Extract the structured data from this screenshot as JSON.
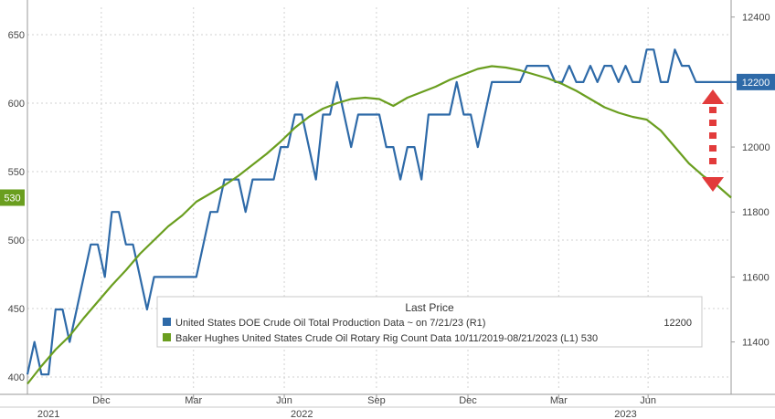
{
  "chart_data": {
    "type": "line",
    "legend": {
      "title": "Last Price",
      "placement": "bottom-center",
      "entries": [
        {
          "label": "United States DOE Crude Oil Total Production Data ~   on 7/21/23   (R1)",
          "value": "12200",
          "color": "#2e6aa8"
        },
        {
          "label": "Baker Hughes United States Crude Oil Rotary Rig Count Data 10/11/2019-08/21/2023   (L1) 530",
          "value": "",
          "color": "#6a9e1f"
        }
      ]
    },
    "left_axis": {
      "min": 390,
      "max": 670,
      "ticks": [
        400,
        450,
        500,
        550,
        600,
        650
      ],
      "last_value_label": "530",
      "label_color": "#6a9e1f"
    },
    "right_axis": {
      "min": 11250,
      "max": 12430,
      "ticks": [
        11400,
        11600,
        11800,
        12000,
        12200,
        12400
      ],
      "last_value_label": "12200",
      "label_color": "#2e6aa8"
    },
    "x_axis": {
      "ticks": [
        {
          "label": "Dec",
          "t": 0.105
        },
        {
          "label": "Mar",
          "t": 0.236
        },
        {
          "label": "Jun",
          "t": 0.365
        },
        {
          "label": "Sep",
          "t": 0.496
        },
        {
          "label": "Dec",
          "t": 0.626
        },
        {
          "label": "Mar",
          "t": 0.755
        },
        {
          "label": "Jun",
          "t": 0.882
        }
      ],
      "years": [
        {
          "label": "2021",
          "t": 0.03
        },
        {
          "label": "2022",
          "t": 0.39
        },
        {
          "label": "2023",
          "t": 0.85
        }
      ]
    },
    "grid": true,
    "series": [
      {
        "name": "United States DOE Crude Oil Total Production Data",
        "axis": "right",
        "color": "#2e6aa8",
        "points": [
          [
            0.0,
            11300
          ],
          [
            0.01,
            11400
          ],
          [
            0.02,
            11300
          ],
          [
            0.03,
            11300
          ],
          [
            0.04,
            11500
          ],
          [
            0.05,
            11500
          ],
          [
            0.06,
            11400
          ],
          [
            0.07,
            11500
          ],
          [
            0.08,
            11600
          ],
          [
            0.09,
            11700
          ],
          [
            0.1,
            11700
          ],
          [
            0.11,
            11600
          ],
          [
            0.12,
            11800
          ],
          [
            0.13,
            11800
          ],
          [
            0.14,
            11700
          ],
          [
            0.15,
            11700
          ],
          [
            0.16,
            11600
          ],
          [
            0.17,
            11500
          ],
          [
            0.18,
            11600
          ],
          [
            0.19,
            11600
          ],
          [
            0.2,
            11600
          ],
          [
            0.21,
            11600
          ],
          [
            0.22,
            11600
          ],
          [
            0.23,
            11600
          ],
          [
            0.24,
            11600
          ],
          [
            0.25,
            11700
          ],
          [
            0.26,
            11800
          ],
          [
            0.27,
            11800
          ],
          [
            0.28,
            11900
          ],
          [
            0.29,
            11900
          ],
          [
            0.3,
            11900
          ],
          [
            0.31,
            11800
          ],
          [
            0.32,
            11900
          ],
          [
            0.33,
            11900
          ],
          [
            0.34,
            11900
          ],
          [
            0.35,
            11900
          ],
          [
            0.36,
            12000
          ],
          [
            0.37,
            12000
          ],
          [
            0.38,
            12100
          ],
          [
            0.39,
            12100
          ],
          [
            0.4,
            12000
          ],
          [
            0.41,
            11900
          ],
          [
            0.42,
            12100
          ],
          [
            0.43,
            12100
          ],
          [
            0.44,
            12200
          ],
          [
            0.45,
            12100
          ],
          [
            0.46,
            12000
          ],
          [
            0.47,
            12100
          ],
          [
            0.48,
            12100
          ],
          [
            0.49,
            12100
          ],
          [
            0.5,
            12100
          ],
          [
            0.51,
            12000
          ],
          [
            0.52,
            12000
          ],
          [
            0.53,
            11900
          ],
          [
            0.54,
            12000
          ],
          [
            0.55,
            12000
          ],
          [
            0.56,
            11900
          ],
          [
            0.57,
            12100
          ],
          [
            0.58,
            12100
          ],
          [
            0.59,
            12100
          ],
          [
            0.6,
            12100
          ],
          [
            0.61,
            12200
          ],
          [
            0.62,
            12100
          ],
          [
            0.63,
            12100
          ],
          [
            0.64,
            12000
          ],
          [
            0.65,
            12100
          ],
          [
            0.66,
            12200
          ],
          [
            0.67,
            12200
          ],
          [
            0.68,
            12200
          ],
          [
            0.69,
            12200
          ],
          [
            0.7,
            12200
          ],
          [
            0.71,
            12250
          ],
          [
            0.72,
            12250
          ],
          [
            0.73,
            12250
          ],
          [
            0.74,
            12250
          ],
          [
            0.75,
            12200
          ],
          [
            0.76,
            12200
          ],
          [
            0.77,
            12250
          ],
          [
            0.78,
            12200
          ],
          [
            0.79,
            12200
          ],
          [
            0.8,
            12250
          ],
          [
            0.81,
            12200
          ],
          [
            0.82,
            12250
          ],
          [
            0.83,
            12250
          ],
          [
            0.84,
            12200
          ],
          [
            0.85,
            12250
          ],
          [
            0.86,
            12200
          ],
          [
            0.87,
            12200
          ],
          [
            0.88,
            12300
          ],
          [
            0.89,
            12300
          ],
          [
            0.9,
            12200
          ],
          [
            0.91,
            12200
          ],
          [
            0.92,
            12300
          ],
          [
            0.93,
            12250
          ],
          [
            0.94,
            12250
          ],
          [
            0.95,
            12200
          ],
          [
            0.96,
            12200
          ],
          [
            0.97,
            12200
          ],
          [
            0.98,
            12200
          ],
          [
            0.99,
            12200
          ],
          [
            1.0,
            12200
          ]
        ]
      },
      {
        "name": "Baker Hughes United States Crude Oil Rotary Rig Count Data",
        "axis": "left",
        "color": "#6a9e1f",
        "points": [
          [
            0.0,
            395
          ],
          [
            0.02,
            408
          ],
          [
            0.04,
            420
          ],
          [
            0.06,
            430
          ],
          [
            0.08,
            443
          ],
          [
            0.1,
            455
          ],
          [
            0.12,
            467
          ],
          [
            0.14,
            478
          ],
          [
            0.16,
            490
          ],
          [
            0.18,
            500
          ],
          [
            0.2,
            510
          ],
          [
            0.22,
            518
          ],
          [
            0.24,
            528
          ],
          [
            0.26,
            534
          ],
          [
            0.28,
            540
          ],
          [
            0.3,
            547
          ],
          [
            0.32,
            555
          ],
          [
            0.34,
            563
          ],
          [
            0.36,
            572
          ],
          [
            0.38,
            582
          ],
          [
            0.4,
            590
          ],
          [
            0.42,
            596
          ],
          [
            0.44,
            600
          ],
          [
            0.46,
            603
          ],
          [
            0.48,
            604
          ],
          [
            0.5,
            603
          ],
          [
            0.52,
            598
          ],
          [
            0.54,
            604
          ],
          [
            0.56,
            608
          ],
          [
            0.58,
            612
          ],
          [
            0.6,
            617
          ],
          [
            0.62,
            621
          ],
          [
            0.64,
            625
          ],
          [
            0.66,
            627
          ],
          [
            0.68,
            626
          ],
          [
            0.7,
            624
          ],
          [
            0.72,
            621
          ],
          [
            0.74,
            618
          ],
          [
            0.76,
            614
          ],
          [
            0.78,
            609
          ],
          [
            0.8,
            603
          ],
          [
            0.82,
            597
          ],
          [
            0.84,
            593
          ],
          [
            0.86,
            590
          ],
          [
            0.88,
            588
          ],
          [
            0.9,
            580
          ],
          [
            0.92,
            568
          ],
          [
            0.94,
            556
          ],
          [
            0.96,
            547
          ],
          [
            0.98,
            540
          ],
          [
            1.0,
            531
          ]
        ]
      }
    ]
  }
}
